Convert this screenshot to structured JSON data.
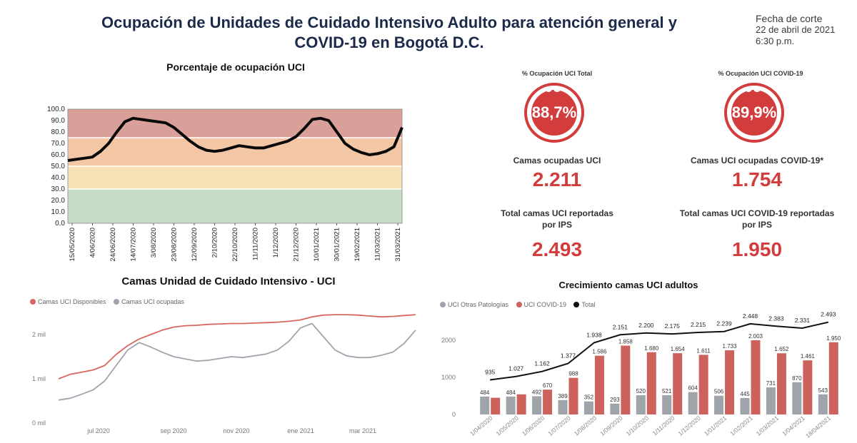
{
  "header": {
    "title_line1": "Ocupación de Unidades de Cuidado Intensivo Adulto para atención general y",
    "title_line2": "COVID-19 en Bogotá D.C.",
    "cutoff_label": "Fecha de corte",
    "cutoff_date": "22 de abril de 2021",
    "cutoff_time": "6:30 p.m."
  },
  "kpis": {
    "total_pct_label": "% Ocupación UCI Total",
    "total_pct": "88,7%",
    "covid_pct_label": "% Ocupación UCI COVID-19",
    "covid_pct": "89,9%",
    "occupied_label": "Camas ocupadas UCI",
    "occupied_value": "2.211",
    "covid_occupied_label": "Camas UCI ocupadas COVID-19*",
    "covid_occupied_value": "1.754",
    "total_reported_label_1": "Total camas UCI reportadas",
    "total_reported_label_2": "por IPS",
    "total_reported_value": "2.493",
    "covid_reported_label_1": "Total camas UCI COVID-19 reportadas",
    "covid_reported_label_2": "por IPS",
    "covid_reported_value": "1.950",
    "gauge_color": "#d23c3c"
  },
  "chart_data": [
    {
      "type": "line",
      "title": "Porcentaje de ocupación UCI",
      "ylim": [
        0,
        100
      ],
      "yticks": [
        "0.0",
        "10.0",
        "20.0",
        "30.0",
        "40.0",
        "50.0",
        "60.0",
        "70.0",
        "80.0",
        "90.0",
        "100.0"
      ],
      "xticks": [
        "15/05/2020",
        "4/06/2020",
        "24/06/2020",
        "14/07/2020",
        "3/08/2020",
        "23/08/2020",
        "12/09/2020",
        "2/10/2020",
        "22/10/2020",
        "11/11/2020",
        "1/12/2020",
        "21/12/2020",
        "10/01/2021",
        "30/01/2021",
        "19/02/2021",
        "11/03/2021",
        "31/03/2021"
      ],
      "bands": [
        {
          "from": 0,
          "to": 30,
          "color": "#c6dcc4"
        },
        {
          "from": 30,
          "to": 50,
          "color": "#f6e2b6"
        },
        {
          "from": 50,
          "to": 75,
          "color": "#f3c6a6"
        },
        {
          "from": 75,
          "to": 100,
          "color": "#d9a09a"
        }
      ],
      "series": [
        {
          "values": [
            55,
            56,
            57,
            58,
            63,
            70,
            80,
            89,
            92,
            91,
            90,
            89,
            88,
            84,
            78,
            72,
            67,
            64,
            63,
            64,
            66,
            68,
            67,
            66,
            66,
            68,
            70,
            72,
            76,
            83,
            91,
            92,
            90,
            80,
            70,
            65,
            62,
            60,
            61,
            63,
            67,
            84
          ]
        }
      ]
    },
    {
      "type": "line",
      "title": "Camas Unidad de Cuidado Intensivo - UCI",
      "ylim": [
        0,
        2500
      ],
      "yticks": [
        "0 mil",
        "1 mil",
        "2 mil"
      ],
      "xticks": [
        "jul 2020",
        "sep 2020",
        "nov 2020",
        "ene 2021",
        "mar 2021"
      ],
      "series": [
        {
          "name": "Camas UCI Disponibles",
          "color": "#d9665e",
          "values": [
            1000,
            1100,
            1150,
            1200,
            1300,
            1550,
            1750,
            1900,
            2000,
            2100,
            2170,
            2200,
            2210,
            2230,
            2240,
            2250,
            2250,
            2260,
            2270,
            2280,
            2300,
            2330,
            2400,
            2440,
            2450,
            2450,
            2440,
            2420,
            2400,
            2410,
            2430,
            2450
          ]
        },
        {
          "name": "Camas UCI ocupadas",
          "color": "#a0a4ad",
          "values": [
            520,
            560,
            650,
            750,
            950,
            1300,
            1650,
            1820,
            1720,
            1600,
            1500,
            1450,
            1400,
            1420,
            1460,
            1500,
            1480,
            1520,
            1560,
            1650,
            1850,
            2150,
            2250,
            1950,
            1650,
            1520,
            1480,
            1480,
            1530,
            1600,
            1800,
            2100
          ]
        }
      ]
    },
    {
      "type": "bar",
      "title": "Crecimiento camas UCI adultos",
      "ylim": [
        0,
        2600
      ],
      "yticks": [
        "0",
        "1000",
        "2000"
      ],
      "categories": [
        "1/04/2020",
        "1/05/2020",
        "1/06/2020",
        "1/07/2020",
        "1/08/2020",
        "1/09/2020",
        "1/10/2020",
        "1/11/2020",
        "1/12/2020",
        "1/01/2021",
        "1/02/2021",
        "1/03/2021",
        "1/04/2021",
        "18/04/2021"
      ],
      "series": [
        {
          "name": "UCI Otras Patologías",
          "color": "#9fa3aa",
          "values": [
            484,
            484,
            492,
            389,
            352,
            293,
            520,
            521,
            604,
            506,
            445,
            731,
            870,
            543
          ]
        },
        {
          "name": "UCI COVID-19",
          "color": "#cd615c",
          "values": [
            451,
            543,
            670,
            988,
            1586,
            1858,
            1680,
            1654,
            1611,
            1733,
            2003,
            1652,
            1461,
            1950
          ]
        },
        {
          "name": "Total",
          "color": "#111111",
          "values": [
            935,
            1027,
            1162,
            1377,
            1938,
            2151,
            2200,
            2175,
            2215,
            2239,
            2448,
            2383,
            2331,
            2493
          ]
        }
      ],
      "labels_otras": [
        "484",
        "484",
        "492",
        "389",
        "352",
        "293",
        "520",
        "521",
        "604",
        "506",
        "445",
        "731",
        "870",
        "543"
      ],
      "labels_covid": [
        "",
        "",
        "670",
        "988",
        "1.586",
        "1.858",
        "1.680",
        "1.654",
        "1.611",
        "1.733",
        "2.003",
        "1.652",
        "1.461",
        "1.950"
      ],
      "labels_total": [
        "935",
        "1.027",
        "1.162",
        "1.377",
        "1.938",
        "2.151",
        "2.200",
        "2.175",
        "2.215",
        "2.239",
        "2.448",
        "2.383",
        "2.331",
        "2.493"
      ]
    }
  ]
}
